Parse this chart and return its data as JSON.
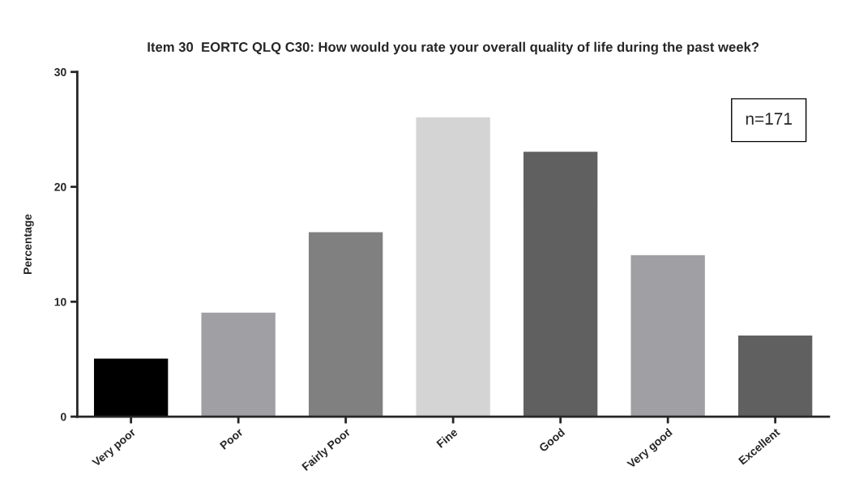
{
  "chart_data": {
    "type": "bar",
    "title": "Item 30  EORTC QLQ C30: How would you rate your overall quality of life during the past week?",
    "ylabel": "Percentage",
    "categories": [
      "Very poor",
      "Poor",
      "Fairly Poor",
      "Fine",
      "Good",
      "Very good",
      "Excellent"
    ],
    "values": [
      5.1,
      9.1,
      16.1,
      26.1,
      23.1,
      14.1,
      7.1
    ],
    "colors": [
      "#000000",
      "#a09fa4",
      "#808080",
      "#d4d4d4",
      "#606060",
      "#a09fa4",
      "#606060"
    ],
    "ylim": [
      0,
      30
    ],
    "yticks": [
      0,
      10,
      20,
      30
    ],
    "grid": false,
    "annotations": [
      "n=171"
    ]
  }
}
